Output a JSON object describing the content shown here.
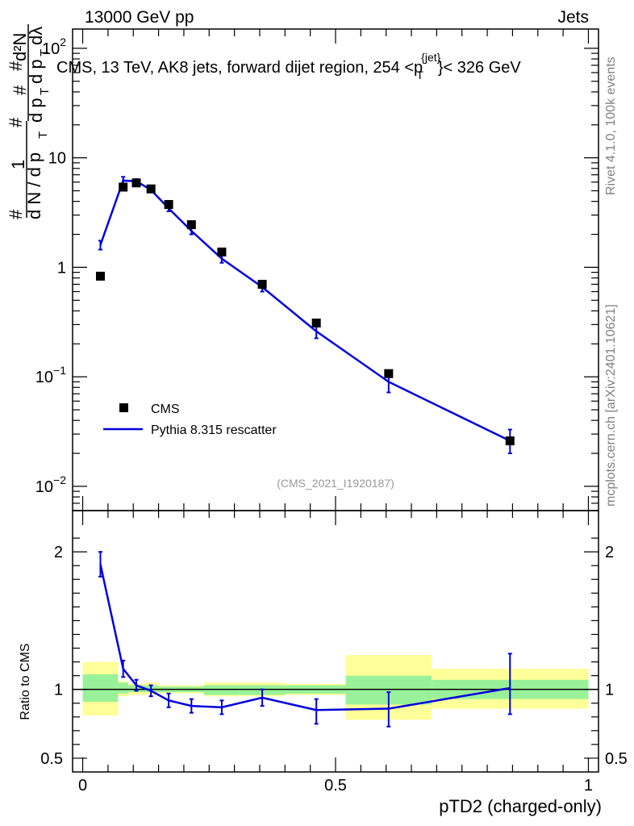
{
  "header": {
    "energy": "13000 GeV pp",
    "category": "Jets",
    "title_main": "CMS, 13 TeV, AK8 jets, forward dijet region, 254 <",
    "title_p": "p",
    "title_sup": "{jet}",
    "title_sub": "T",
    "title_end": "}< 326 GeV",
    "analysis_id": "(CMS_2021_I1920187)"
  },
  "side_text": {
    "rivet": "Rivet 4.1.0,  100k events",
    "mcplots": "mcplots.cern.ch [arXiv:2401.10621]"
  },
  "ylabel_top": {
    "hash1": "#",
    "num1": "1",
    "den1": "d N / d p",
    "den1_sub": "T",
    "hash2": "#",
    "num2": "#",
    "den2": "d p",
    "den2_sub": "T",
    "hash3": "#",
    "num3": "d²N",
    "den3": "d p",
    "den3_sub": "T",
    "den3_end": "dλ"
  },
  "ylabel_bottom": "Ratio to CMS",
  "xlabel": "pTD2 (charged-only)",
  "legend": {
    "data_label": "CMS",
    "mc_label": "Pythia 8.315 rescatter"
  },
  "colors": {
    "mc": "#0000dd",
    "band_inner": "#99f299",
    "band_outer": "#ffff99",
    "data": "#000000"
  },
  "chart_data": [
    {
      "type": "scatter",
      "panel": "main",
      "yscale": "log",
      "ylim": [
        0.006,
        150
      ],
      "xlim": [
        -0.02,
        1.02
      ],
      "y_ticks": [
        {
          "value": 100,
          "base": "10",
          "exp": "2"
        },
        {
          "value": 10,
          "base": "10",
          "exp": ""
        },
        {
          "value": 1,
          "base": "1",
          "exp": ""
        },
        {
          "value": 0.1,
          "base": "10",
          "exp": "−1"
        },
        {
          "value": 0.01,
          "base": "10",
          "exp": "−2"
        }
      ],
      "series": [
        {
          "name": "CMS",
          "x": [
            0.035,
            0.08,
            0.106,
            0.135,
            0.17,
            0.215,
            0.275,
            0.355,
            0.462,
            0.605,
            0.845
          ],
          "values": [
            0.83,
            5.4,
            5.9,
            5.2,
            3.75,
            2.45,
            1.38,
            0.7,
            0.31,
            0.107,
            0.026
          ],
          "bins": [
            [
              0.0,
              0.07
            ],
            [
              0.07,
              0.09
            ],
            [
              0.09,
              0.12
            ],
            [
              0.12,
              0.15
            ],
            [
              0.15,
              0.19
            ],
            [
              0.19,
              0.24
            ],
            [
              0.24,
              0.31
            ],
            [
              0.31,
              0.4
            ],
            [
              0.4,
              0.52
            ],
            [
              0.52,
              0.69
            ],
            [
              0.69,
              1.0
            ]
          ]
        },
        {
          "name": "Pythia 8.315 rescatter",
          "x": [
            0.035,
            0.08,
            0.106,
            0.135,
            0.17,
            0.215,
            0.275,
            0.355,
            0.462,
            0.605,
            0.845
          ],
          "values": [
            1.6,
            6.2,
            6.1,
            5.1,
            3.45,
            2.15,
            1.2,
            0.66,
            0.26,
            0.09,
            0.026
          ],
          "err_lo": [
            0.15,
            0.5,
            0.3,
            0.2,
            0.2,
            0.15,
            0.1,
            0.06,
            0.035,
            0.018,
            0.006
          ],
          "err_hi": [
            0.15,
            0.5,
            0.3,
            0.2,
            0.2,
            0.15,
            0.1,
            0.06,
            0.035,
            0.018,
            0.007
          ]
        }
      ]
    },
    {
      "type": "line",
      "panel": "ratio",
      "ylim": [
        0.4,
        2.3
      ],
      "xlim": [
        -0.02,
        1.02
      ],
      "y_ticks": [
        2,
        1,
        0.5
      ],
      "y_tick_labels": [
        "2",
        "1",
        "0.5"
      ],
      "x_ticks": [
        0,
        0.5,
        1
      ],
      "x_tick_labels": [
        "0",
        "0.5",
        "1"
      ],
      "bands": [
        {
          "x0": 0.0,
          "x1": 0.07,
          "inner": [
            0.91,
            1.11
          ],
          "outer": [
            0.81,
            1.2
          ]
        },
        {
          "x0": 0.07,
          "x1": 0.09,
          "inner": [
            0.97,
            1.05
          ],
          "outer": [
            0.95,
            1.06
          ]
        },
        {
          "x0": 0.09,
          "x1": 0.12,
          "inner": [
            0.98,
            1.03
          ],
          "outer": [
            0.96,
            1.04
          ]
        },
        {
          "x0": 0.12,
          "x1": 0.15,
          "inner": [
            0.98,
            1.03
          ],
          "outer": [
            0.96,
            1.05
          ]
        },
        {
          "x0": 0.15,
          "x1": 0.19,
          "inner": [
            0.98,
            1.02
          ],
          "outer": [
            0.97,
            1.03
          ]
        },
        {
          "x0": 0.19,
          "x1": 0.24,
          "inner": [
            0.98,
            1.02
          ],
          "outer": [
            0.97,
            1.03
          ]
        },
        {
          "x0": 0.24,
          "x1": 0.31,
          "inner": [
            0.96,
            1.03
          ],
          "outer": [
            0.95,
            1.05
          ]
        },
        {
          "x0": 0.31,
          "x1": 0.4,
          "inner": [
            0.96,
            1.03
          ],
          "outer": [
            0.95,
            1.05
          ]
        },
        {
          "x0": 0.4,
          "x1": 0.52,
          "inner": [
            0.97,
            1.03
          ],
          "outer": [
            0.96,
            1.04
          ]
        },
        {
          "x0": 0.52,
          "x1": 0.69,
          "inner": [
            0.89,
            1.1
          ],
          "outer": [
            0.78,
            1.25
          ]
        },
        {
          "x0": 0.69,
          "x1": 1.0,
          "inner": [
            0.93,
            1.07
          ],
          "outer": [
            0.86,
            1.15
          ]
        }
      ],
      "series": [
        {
          "name": "Pythia 8.315 rescatter / CMS",
          "x": [
            0.035,
            0.08,
            0.106,
            0.135,
            0.17,
            0.215,
            0.275,
            0.355,
            0.462,
            0.605,
            0.845
          ],
          "values": [
            1.91,
            1.15,
            1.03,
            0.99,
            0.92,
            0.88,
            0.87,
            0.94,
            0.85,
            0.86,
            1.01
          ],
          "err_lo": [
            0.09,
            0.06,
            0.04,
            0.04,
            0.05,
            0.05,
            0.05,
            0.06,
            0.1,
            0.13,
            0.19
          ],
          "err_hi": [
            0.09,
            0.06,
            0.04,
            0.04,
            0.05,
            0.05,
            0.05,
            0.06,
            0.08,
            0.12,
            0.25
          ]
        }
      ]
    }
  ]
}
